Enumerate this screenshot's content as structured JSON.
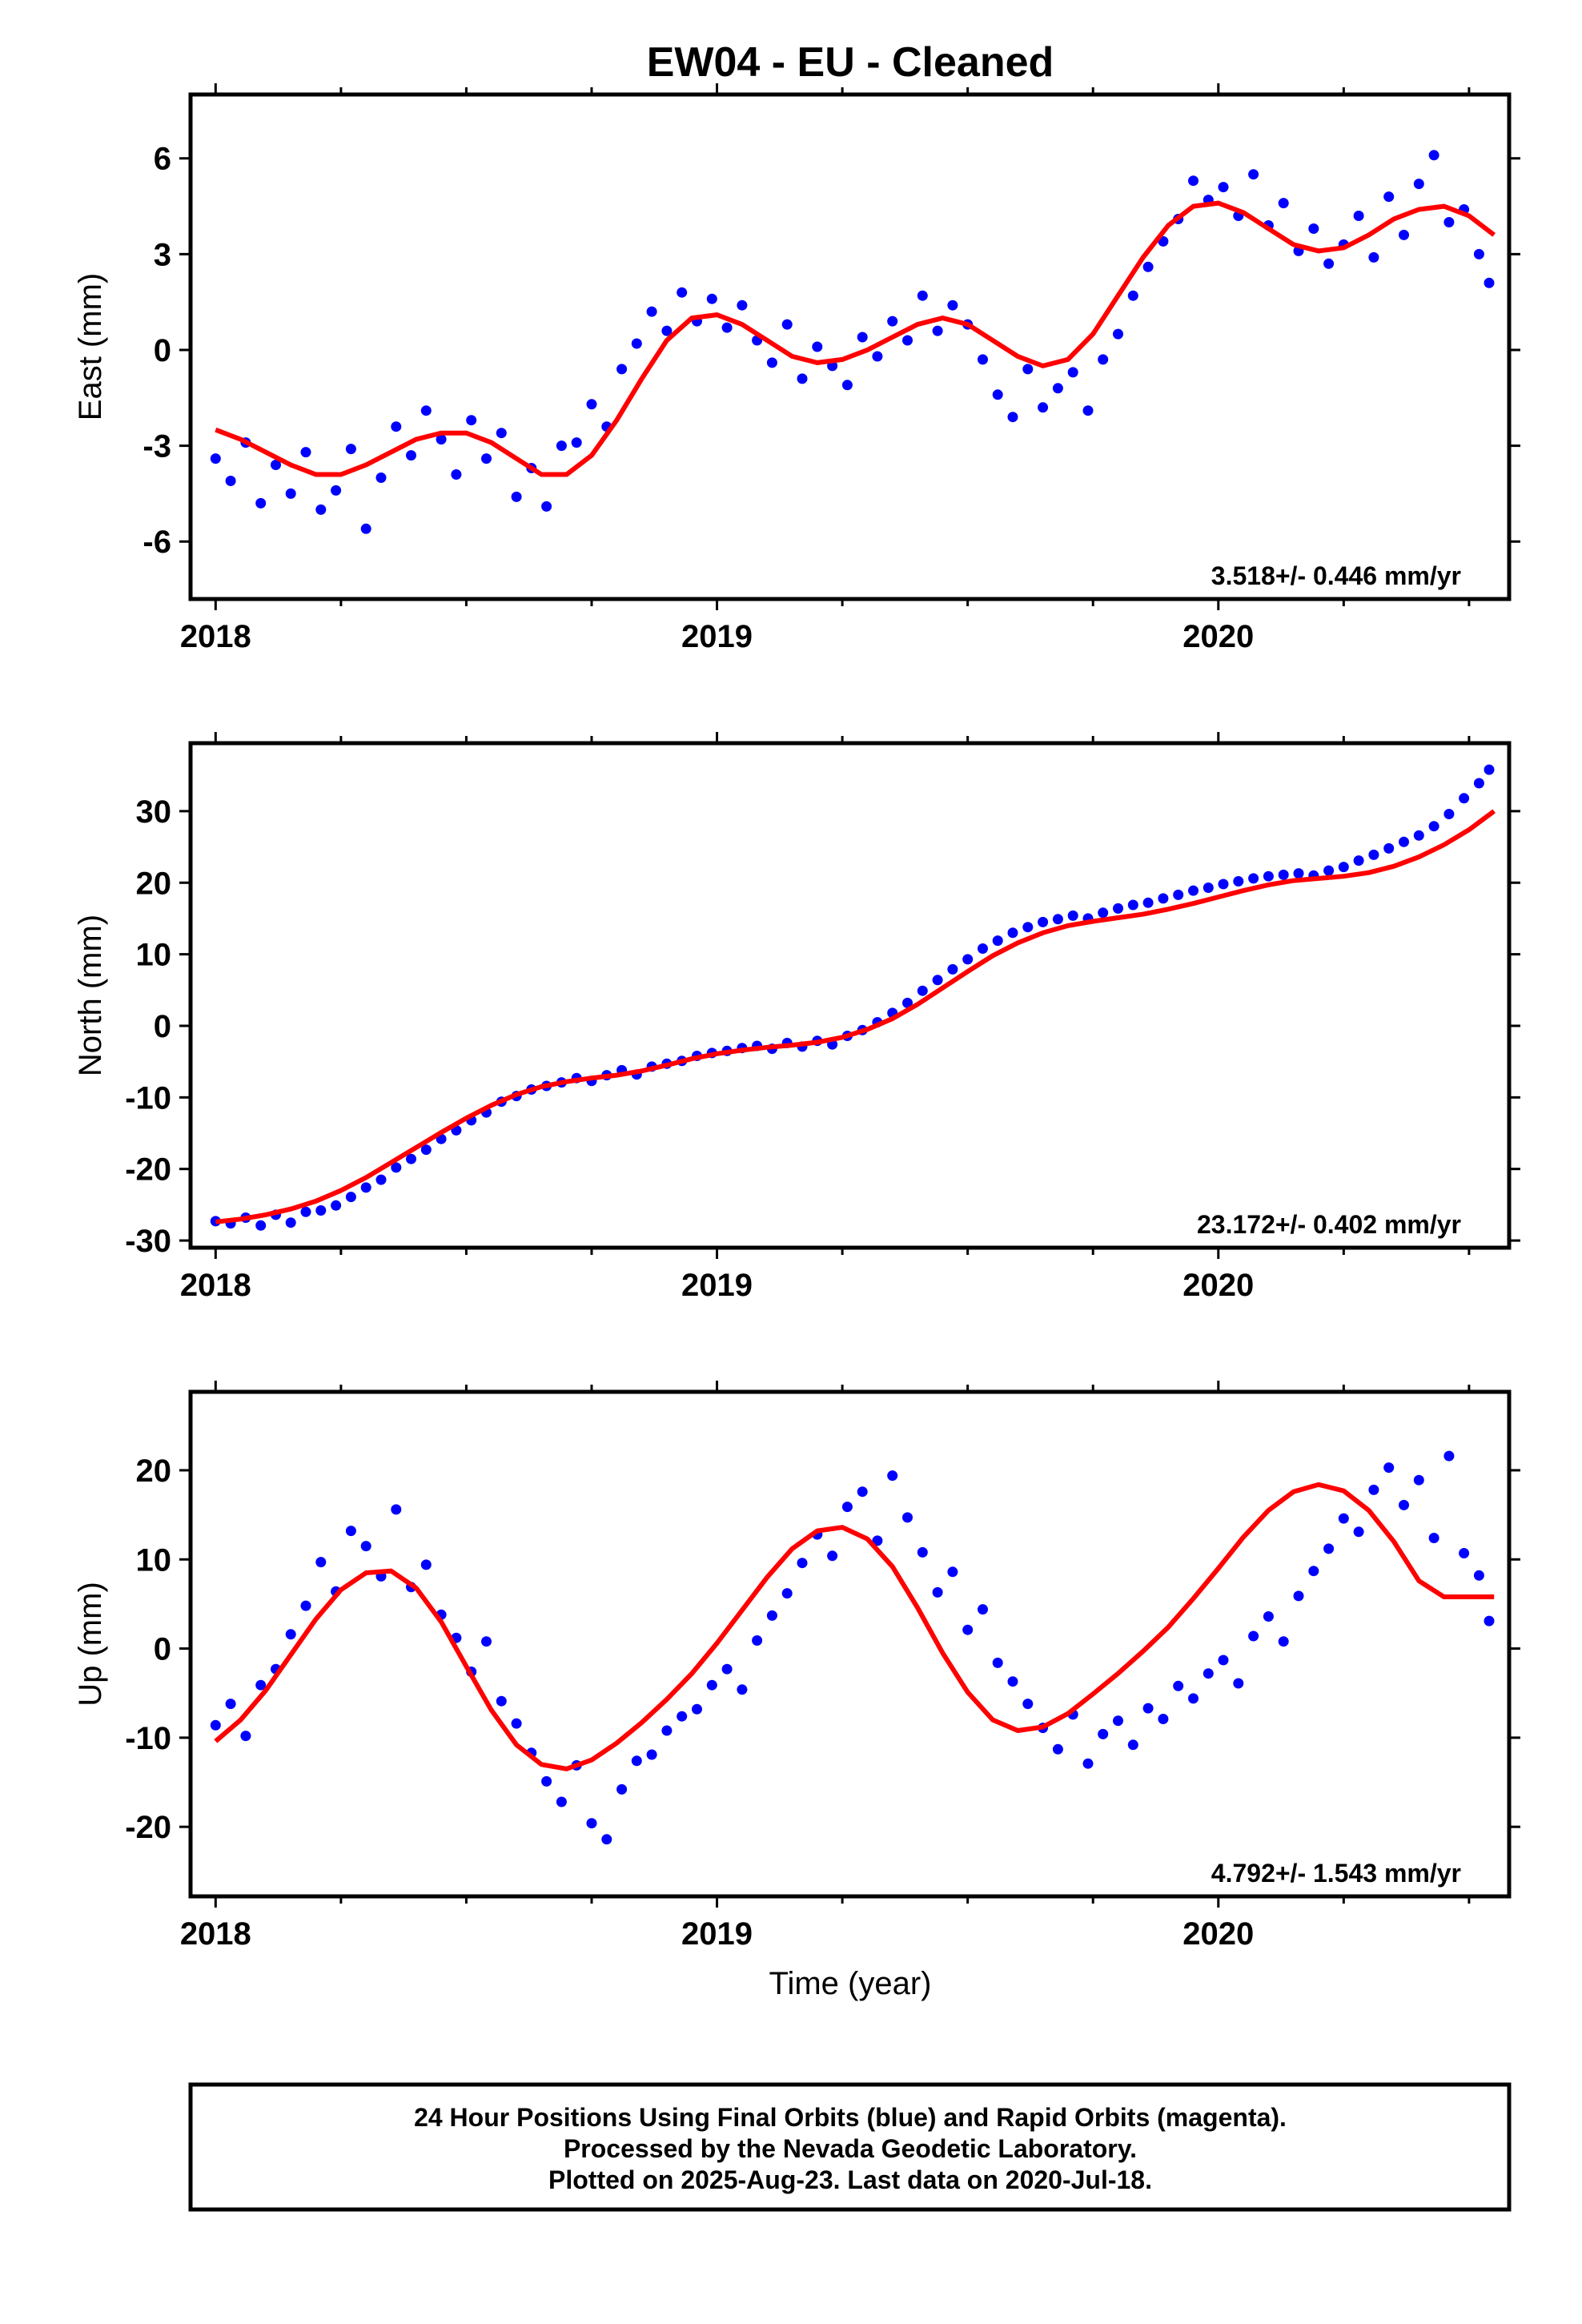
{
  "figure": {
    "title": "EW04  - EU - Cleaned",
    "xlabel": "Time (year)",
    "footer": [
      "24 Hour Positions Using Final Orbits (blue) and Rapid Orbits (magenta).",
      "Processed by the Nevada Geodetic Laboratory.",
      "Plotted on 2025-Aug-23. Last data on 2020-Jul-18."
    ]
  },
  "colors": {
    "points": "#0000ff",
    "model": "#ff0000",
    "frame": "#000000"
  },
  "chart_data": [
    {
      "type": "scatter",
      "ylabel": "East (mm)",
      "xlim": [
        2017.95,
        2020.58
      ],
      "ylim": [
        -7.8,
        8.0
      ],
      "xticks": [
        2018,
        2019,
        2020
      ],
      "yticks": [
        -6,
        -3,
        0,
        3,
        6
      ],
      "rate_label": "3.518+/- 0.446 mm/yr",
      "series": [
        {
          "kind": "observations",
          "x": [
            2018.0,
            2018.03,
            2018.06,
            2018.09,
            2018.12,
            2018.15,
            2018.18,
            2018.21,
            2018.24,
            2018.27,
            2018.3,
            2018.33,
            2018.36,
            2018.39,
            2018.42,
            2018.45,
            2018.48,
            2018.51,
            2018.54,
            2018.57,
            2018.6,
            2018.63,
            2018.66,
            2018.69,
            2018.72,
            2018.75,
            2018.78,
            2018.81,
            2018.84,
            2018.87,
            2018.9,
            2018.93,
            2018.96,
            2018.99,
            2019.02,
            2019.05,
            2019.08,
            2019.11,
            2019.14,
            2019.17,
            2019.2,
            2019.23,
            2019.26,
            2019.29,
            2019.32,
            2019.35,
            2019.38,
            2019.41,
            2019.44,
            2019.47,
            2019.5,
            2019.53,
            2019.56,
            2019.59,
            2019.62,
            2019.65,
            2019.68,
            2019.71,
            2019.74,
            2019.77,
            2019.8,
            2019.83,
            2019.86,
            2019.89,
            2019.92,
            2019.95,
            2019.98,
            2020.01,
            2020.04,
            2020.07,
            2020.1,
            2020.13,
            2020.16,
            2020.19,
            2020.22,
            2020.25,
            2020.28,
            2020.31,
            2020.34,
            2020.37,
            2020.4,
            2020.43,
            2020.46,
            2020.49,
            2020.52,
            2020.54
          ],
          "y": [
            -3.4,
            -4.1,
            -2.9,
            -4.8,
            -3.6,
            -4.5,
            -3.2,
            -5.0,
            -4.4,
            -3.1,
            -5.6,
            -4.0,
            -2.4,
            -3.3,
            -1.9,
            -2.8,
            -3.9,
            -2.2,
            -3.4,
            -2.6,
            -4.6,
            -3.7,
            -4.9,
            -3.0,
            -2.9,
            -1.7,
            -2.4,
            -0.6,
            0.2,
            1.2,
            0.6,
            1.8,
            0.9,
            1.6,
            0.7,
            1.4,
            0.3,
            -0.4,
            0.8,
            -0.9,
            0.1,
            -0.5,
            -1.1,
            0.4,
            -0.2,
            0.9,
            0.3,
            1.7,
            0.6,
            1.4,
            0.8,
            -0.3,
            -1.4,
            -2.1,
            -0.6,
            -1.8,
            -1.2,
            -0.7,
            -1.9,
            -0.3,
            0.5,
            1.7,
            2.6,
            3.4,
            4.1,
            5.3,
            4.7,
            5.1,
            4.2,
            5.5,
            3.9,
            4.6,
            3.1,
            3.8,
            2.7,
            3.3,
            4.2,
            2.9,
            4.8,
            3.6,
            5.2,
            6.1,
            4.0,
            4.4,
            3.0,
            2.1
          ]
        },
        {
          "kind": "model",
          "x": [
            2018.0,
            2018.05,
            2018.1,
            2018.15,
            2018.2,
            2018.25,
            2018.3,
            2018.35,
            2018.4,
            2018.45,
            2018.5,
            2018.55,
            2018.6,
            2018.65,
            2018.7,
            2018.75,
            2018.8,
            2018.85,
            2018.9,
            2018.95,
            2019.0,
            2019.05,
            2019.1,
            2019.15,
            2019.2,
            2019.25,
            2019.3,
            2019.35,
            2019.4,
            2019.45,
            2019.5,
            2019.55,
            2019.6,
            2019.65,
            2019.7,
            2019.75,
            2019.8,
            2019.85,
            2019.9,
            2019.95,
            2020.0,
            2020.05,
            2020.1,
            2020.15,
            2020.2,
            2020.25,
            2020.3,
            2020.35,
            2020.4,
            2020.45,
            2020.5,
            2020.55
          ],
          "y": [
            -2.5,
            -2.8,
            -3.2,
            -3.6,
            -3.9,
            -3.9,
            -3.6,
            -3.2,
            -2.8,
            -2.6,
            -2.6,
            -2.9,
            -3.4,
            -3.9,
            -3.9,
            -3.3,
            -2.2,
            -0.9,
            0.3,
            1.0,
            1.1,
            0.8,
            0.3,
            -0.2,
            -0.4,
            -0.3,
            0.0,
            0.4,
            0.8,
            1.0,
            0.8,
            0.3,
            -0.2,
            -0.5,
            -0.3,
            0.5,
            1.7,
            2.9,
            3.9,
            4.5,
            4.6,
            4.3,
            3.8,
            3.3,
            3.1,
            3.2,
            3.6,
            4.1,
            4.4,
            4.5,
            4.2,
            3.6
          ]
        }
      ]
    },
    {
      "type": "scatter",
      "ylabel": "North (mm)",
      "xlim": [
        2017.95,
        2020.58
      ],
      "ylim": [
        -31,
        39.5
      ],
      "xticks": [
        2018,
        2019,
        2020
      ],
      "yticks": [
        -30,
        -20,
        -10,
        0,
        10,
        20,
        30
      ],
      "rate_label": "23.172+/- 0.402 mm/yr",
      "series": [
        {
          "kind": "observations",
          "x": [
            2018.0,
            2018.03,
            2018.06,
            2018.09,
            2018.12,
            2018.15,
            2018.18,
            2018.21,
            2018.24,
            2018.27,
            2018.3,
            2018.33,
            2018.36,
            2018.39,
            2018.42,
            2018.45,
            2018.48,
            2018.51,
            2018.54,
            2018.57,
            2018.6,
            2018.63,
            2018.66,
            2018.69,
            2018.72,
            2018.75,
            2018.78,
            2018.81,
            2018.84,
            2018.87,
            2018.9,
            2018.93,
            2018.96,
            2018.99,
            2019.02,
            2019.05,
            2019.08,
            2019.11,
            2019.14,
            2019.17,
            2019.2,
            2019.23,
            2019.26,
            2019.29,
            2019.32,
            2019.35,
            2019.38,
            2019.41,
            2019.44,
            2019.47,
            2019.5,
            2019.53,
            2019.56,
            2019.59,
            2019.62,
            2019.65,
            2019.68,
            2019.71,
            2019.74,
            2019.77,
            2019.8,
            2019.83,
            2019.86,
            2019.89,
            2019.92,
            2019.95,
            2019.98,
            2020.01,
            2020.04,
            2020.07,
            2020.1,
            2020.13,
            2020.16,
            2020.19,
            2020.22,
            2020.25,
            2020.28,
            2020.31,
            2020.34,
            2020.37,
            2020.4,
            2020.43,
            2020.46,
            2020.49,
            2020.52,
            2020.54
          ],
          "y": [
            -27.3,
            -27.6,
            -26.8,
            -27.9,
            -26.4,
            -27.5,
            -26.0,
            -25.8,
            -25.1,
            -23.9,
            -22.6,
            -21.5,
            -19.8,
            -18.6,
            -17.3,
            -15.8,
            -14.6,
            -13.2,
            -12.1,
            -10.6,
            -9.8,
            -8.9,
            -8.4,
            -7.9,
            -7.3,
            -7.7,
            -6.9,
            -6.2,
            -6.8,
            -5.7,
            -5.3,
            -4.9,
            -4.2,
            -3.8,
            -3.5,
            -3.1,
            -2.8,
            -3.2,
            -2.4,
            -2.9,
            -2.1,
            -2.6,
            -1.4,
            -0.6,
            0.5,
            1.8,
            3.2,
            4.9,
            6.4,
            7.9,
            9.3,
            10.8,
            11.9,
            13.0,
            13.8,
            14.5,
            14.9,
            15.4,
            15.0,
            15.8,
            16.4,
            16.9,
            17.2,
            17.8,
            18.3,
            18.9,
            19.3,
            19.8,
            20.2,
            20.6,
            20.9,
            21.1,
            21.3,
            21.0,
            21.7,
            22.2,
            23.1,
            23.9,
            24.8,
            25.7,
            26.6,
            27.9,
            29.6,
            31.8,
            33.9,
            35.8
          ]
        },
        {
          "kind": "model",
          "x": [
            2018.0,
            2018.05,
            2018.1,
            2018.15,
            2018.2,
            2018.25,
            2018.3,
            2018.35,
            2018.4,
            2018.45,
            2018.5,
            2018.55,
            2018.6,
            2018.65,
            2018.7,
            2018.75,
            2018.8,
            2018.85,
            2018.9,
            2018.95,
            2019.0,
            2019.05,
            2019.1,
            2019.15,
            2019.2,
            2019.25,
            2019.3,
            2019.35,
            2019.4,
            2019.45,
            2019.5,
            2019.55,
            2019.6,
            2019.65,
            2019.7,
            2019.75,
            2019.8,
            2019.85,
            2019.9,
            2019.95,
            2020.0,
            2020.05,
            2020.1,
            2020.15,
            2020.2,
            2020.25,
            2020.3,
            2020.35,
            2020.4,
            2020.45,
            2020.5,
            2020.55
          ],
          "y": [
            -27.4,
            -27.0,
            -26.4,
            -25.6,
            -24.5,
            -23.0,
            -21.2,
            -19.1,
            -17.0,
            -14.9,
            -12.9,
            -11.1,
            -9.6,
            -8.5,
            -7.8,
            -7.3,
            -6.9,
            -6.3,
            -5.5,
            -4.6,
            -3.9,
            -3.4,
            -3.0,
            -2.7,
            -2.3,
            -1.6,
            -0.5,
            1.0,
            3.0,
            5.3,
            7.6,
            9.8,
            11.6,
            13.0,
            14.0,
            14.6,
            15.1,
            15.6,
            16.3,
            17.1,
            18.0,
            18.9,
            19.7,
            20.3,
            20.6,
            20.9,
            21.4,
            22.3,
            23.6,
            25.3,
            27.4,
            30.0
          ]
        }
      ]
    },
    {
      "type": "scatter",
      "ylabel": "Up (mm)",
      "xlim": [
        2017.95,
        2020.58
      ],
      "ylim": [
        -27.8,
        28.8
      ],
      "xticks": [
        2018,
        2019,
        2020
      ],
      "yticks": [
        -20,
        -10,
        0,
        10,
        20
      ],
      "rate_label": "4.792+/- 1.543 mm/yr",
      "series": [
        {
          "kind": "observations",
          "x": [
            2018.0,
            2018.03,
            2018.06,
            2018.09,
            2018.12,
            2018.15,
            2018.18,
            2018.21,
            2018.24,
            2018.27,
            2018.3,
            2018.33,
            2018.36,
            2018.39,
            2018.42,
            2018.45,
            2018.48,
            2018.51,
            2018.54,
            2018.57,
            2018.6,
            2018.63,
            2018.66,
            2018.69,
            2018.72,
            2018.75,
            2018.78,
            2018.81,
            2018.84,
            2018.87,
            2018.9,
            2018.93,
            2018.96,
            2018.99,
            2019.02,
            2019.05,
            2019.08,
            2019.11,
            2019.14,
            2019.17,
            2019.2,
            2019.23,
            2019.26,
            2019.29,
            2019.32,
            2019.35,
            2019.38,
            2019.41,
            2019.44,
            2019.47,
            2019.5,
            2019.53,
            2019.56,
            2019.59,
            2019.62,
            2019.65,
            2019.68,
            2019.71,
            2019.74,
            2019.77,
            2019.8,
            2019.83,
            2019.86,
            2019.89,
            2019.92,
            2019.95,
            2019.98,
            2020.01,
            2020.04,
            2020.07,
            2020.1,
            2020.13,
            2020.16,
            2020.19,
            2020.22,
            2020.25,
            2020.28,
            2020.31,
            2020.34,
            2020.37,
            2020.4,
            2020.43,
            2020.46,
            2020.49,
            2020.52,
            2020.54
          ],
          "y": [
            -8.6,
            -6.2,
            -9.8,
            -4.1,
            -2.3,
            1.6,
            4.8,
            9.7,
            6.4,
            13.2,
            11.5,
            8.1,
            15.6,
            6.9,
            9.4,
            3.8,
            1.2,
            -2.6,
            0.8,
            -5.9,
            -8.4,
            -11.7,
            -14.9,
            -17.2,
            -13.1,
            -19.6,
            -21.4,
            -15.8,
            -12.6,
            -11.9,
            -9.2,
            -7.6,
            -6.8,
            -4.1,
            -2.3,
            -4.6,
            0.9,
            3.7,
            6.2,
            9.6,
            12.8,
            10.4,
            15.9,
            17.6,
            12.1,
            19.4,
            14.7,
            10.8,
            6.3,
            8.6,
            2.1,
            4.4,
            -1.6,
            -3.7,
            -6.2,
            -8.9,
            -11.3,
            -7.4,
            -12.9,
            -9.6,
            -8.1,
            -10.8,
            -6.7,
            -7.9,
            -4.2,
            -5.6,
            -2.8,
            -1.3,
            -3.9,
            1.4,
            3.6,
            0.8,
            5.9,
            8.7,
            11.2,
            14.6,
            13.1,
            17.8,
            20.3,
            16.1,
            18.9,
            12.4,
            21.6,
            10.7,
            8.2,
            3.1
          ]
        },
        {
          "kind": "model",
          "x": [
            2018.0,
            2018.05,
            2018.1,
            2018.15,
            2018.2,
            2018.25,
            2018.3,
            2018.35,
            2018.4,
            2018.45,
            2018.5,
            2018.55,
            2018.6,
            2018.65,
            2018.7,
            2018.75,
            2018.8,
            2018.85,
            2018.9,
            2018.95,
            2019.0,
            2019.05,
            2019.1,
            2019.15,
            2019.2,
            2019.25,
            2019.3,
            2019.35,
            2019.4,
            2019.45,
            2019.5,
            2019.55,
            2019.6,
            2019.65,
            2019.7,
            2019.75,
            2019.8,
            2019.85,
            2019.9,
            2019.95,
            2020.0,
            2020.05,
            2020.1,
            2020.15,
            2020.2,
            2020.25,
            2020.3,
            2020.35,
            2020.4,
            2020.45,
            2020.5,
            2020.55
          ],
          "y": [
            -10.4,
            -8.0,
            -4.7,
            -0.7,
            3.3,
            6.6,
            8.5,
            8.7,
            6.8,
            3.0,
            -2.0,
            -6.9,
            -10.8,
            -13.0,
            -13.5,
            -12.5,
            -10.6,
            -8.3,
            -5.7,
            -2.8,
            0.6,
            4.3,
            8.0,
            11.2,
            13.2,
            13.6,
            12.3,
            9.2,
            4.6,
            -0.5,
            -4.9,
            -8.0,
            -9.2,
            -8.8,
            -7.3,
            -5.1,
            -2.8,
            -0.3,
            2.4,
            5.6,
            9.0,
            12.5,
            15.5,
            17.6,
            18.4,
            17.7,
            15.5,
            12.0,
            7.6,
            5.8,
            5.8,
            5.8
          ]
        }
      ]
    }
  ]
}
